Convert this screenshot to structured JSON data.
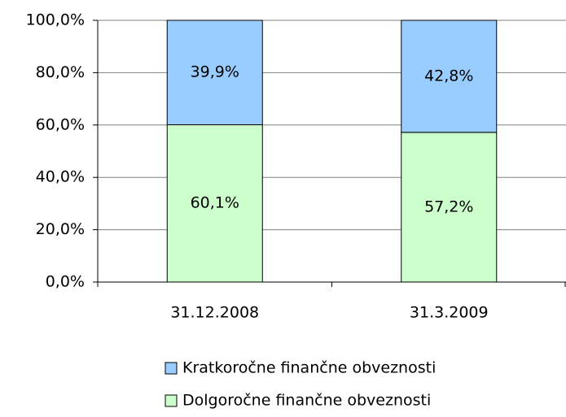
{
  "chart_data": {
    "type": "stacked_bar",
    "categories": [
      "31.12.2008",
      "31.3.2009"
    ],
    "series": [
      {
        "name": "Kratkoročne finančne obveznosti",
        "color": "#99ccff",
        "values": [
          39.9,
          42.8
        ],
        "value_labels": [
          "39,9%",
          "42,8%"
        ]
      },
      {
        "name": "Dolgoročne finančne obveznosti",
        "color": "#ccffcc",
        "values": [
          60.1,
          57.2
        ],
        "value_labels": [
          "60,1%",
          "57,2%"
        ]
      }
    ],
    "ylim": [
      0,
      100
    ],
    "yticks": [
      {
        "value": 0,
        "label": "0,0%"
      },
      {
        "value": 20,
        "label": "20,0%"
      },
      {
        "value": 40,
        "label": "40,0%"
      },
      {
        "value": 60,
        "label": "60,0%"
      },
      {
        "value": 80,
        "label": "80,0%"
      },
      {
        "value": 100,
        "label": "100,0%"
      }
    ],
    "grid": true
  }
}
